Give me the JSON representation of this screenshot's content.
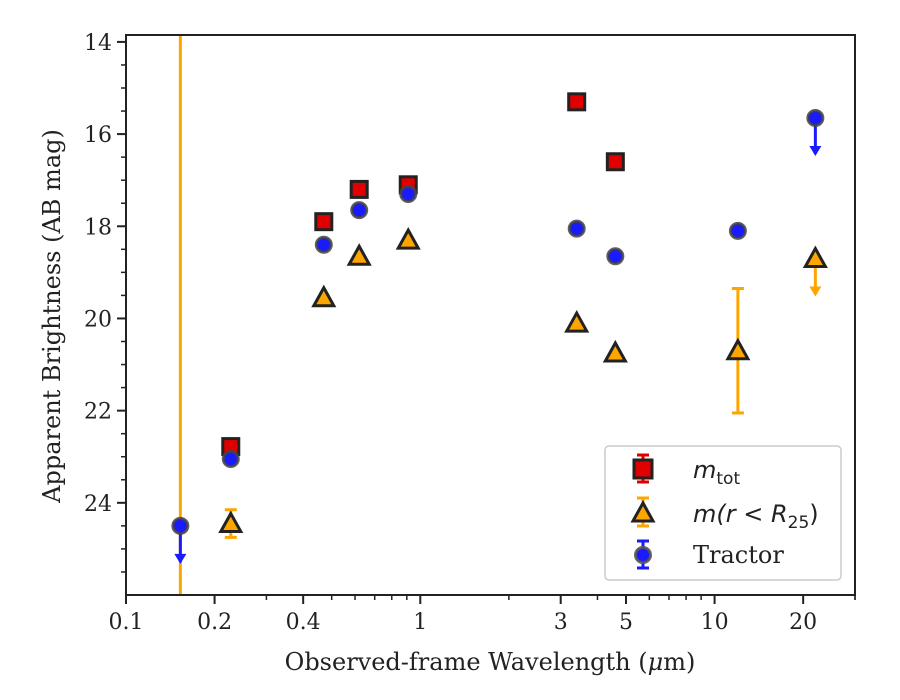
{
  "chart_data": {
    "type": "scatter",
    "xlabel_pre": "Observed-frame Wavelength (",
    "xlabel_mu": "μ",
    "xlabel_post": "m)",
    "ylabel": "Apparent Brightness (AB mag)",
    "xscale": "log",
    "xlim": [
      0.1,
      30
    ],
    "ylim": [
      26.0,
      13.85
    ],
    "y_inverted": true,
    "x_tick_values": [
      0.1,
      0.2,
      0.4,
      1,
      3,
      5,
      10,
      20
    ],
    "x_tick_labels": [
      "0.1",
      "0.2",
      "0.4",
      "1",
      "3",
      "5",
      "10",
      "20"
    ],
    "y_tick_values": [
      14,
      16,
      18,
      20,
      22,
      24
    ],
    "y_tick_labels": [
      "14",
      "16",
      "18",
      "20",
      "22",
      "24"
    ],
    "grid": false,
    "legend_position": "lower-right",
    "vertical_line": {
      "x": 0.153,
      "color": "#ffa500"
    },
    "series": [
      {
        "name": "m_tot",
        "legend_main": "m",
        "legend_sub": "tot",
        "marker": "square",
        "color": "#e00000",
        "points": [
          {
            "x": 0.227,
            "y": 22.78
          },
          {
            "x": 0.47,
            "y": 17.9
          },
          {
            "x": 0.62,
            "y": 17.2
          },
          {
            "x": 0.91,
            "y": 17.1
          },
          {
            "x": 3.4,
            "y": 15.3
          },
          {
            "x": 4.6,
            "y": 16.6
          }
        ]
      },
      {
        "name": "m(r < R25)",
        "legend_main": "m(r < R",
        "legend_sub": "25",
        "legend_end": ")",
        "marker": "triangle",
        "color": "#ffa500",
        "points": [
          {
            "x": 0.227,
            "y": 24.45,
            "yerr_low": 24.15,
            "yerr_high": 24.75
          },
          {
            "x": 0.47,
            "y": 19.55
          },
          {
            "x": 0.62,
            "y": 18.65
          },
          {
            "x": 0.91,
            "y": 18.3
          },
          {
            "x": 3.4,
            "y": 20.1
          },
          {
            "x": 4.6,
            "y": 20.75
          },
          {
            "x": 12.0,
            "y": 20.7,
            "yerr_low": 19.35,
            "yerr_high": 22.05
          },
          {
            "x": 22.0,
            "y": 18.7,
            "upper_limit": true
          }
        ]
      },
      {
        "name": "Tractor",
        "legend_main": "Tractor",
        "marker": "circle",
        "color": "#1a1aff",
        "points": [
          {
            "x": 0.153,
            "y": 24.5,
            "upper_limit": true
          },
          {
            "x": 0.227,
            "y": 23.05
          },
          {
            "x": 0.47,
            "y": 18.4
          },
          {
            "x": 0.62,
            "y": 17.65
          },
          {
            "x": 0.91,
            "y": 17.3
          },
          {
            "x": 3.4,
            "y": 18.05
          },
          {
            "x": 4.6,
            "y": 18.65
          },
          {
            "x": 12.0,
            "y": 18.1
          },
          {
            "x": 22.0,
            "y": 15.65,
            "upper_limit": true
          }
        ]
      }
    ]
  }
}
